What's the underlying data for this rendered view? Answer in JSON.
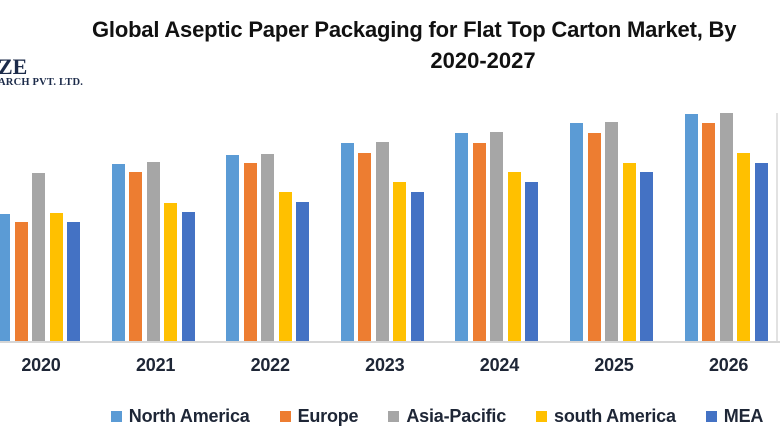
{
  "logo": {
    "line1": "ZE",
    "line2": "ARCH PVT. LTD."
  },
  "title": {
    "line1": "Global Aseptic Paper Packaging for Flat Top Carton Market, By",
    "line2": "2020-2027"
  },
  "chart_data": {
    "type": "bar",
    "title": "Global Aseptic Paper Packaging for Flat Top Carton Market, By 2020-2027",
    "categories": [
      "2020",
      "2021",
      "2022",
      "2023",
      "2024",
      "2025",
      "2026"
    ],
    "series": [
      {
        "name": "North America",
        "color": "#5B9BD5",
        "values": [
          127,
          177,
          186,
          198,
          208,
          218,
          227
        ]
      },
      {
        "name": "Europe",
        "color": "#ED7D31",
        "values": [
          119,
          169,
          178,
          188,
          198,
          208,
          218
        ]
      },
      {
        "name": "Asia-Pacific",
        "color": "#A6A6A6",
        "values": [
          168,
          179,
          187,
          199,
          209,
          219,
          228
        ]
      },
      {
        "name": "south America",
        "color": "#FFC000",
        "values": [
          128,
          138,
          149,
          159,
          169,
          178,
          188
        ]
      },
      {
        "name": "MEA",
        "color": "#4472C4",
        "values": [
          119,
          129,
          139,
          149,
          159,
          169,
          178
        ]
      }
    ],
    "units": "relative height (value axis cropped out of image)",
    "ylim": [
      0,
      241
    ],
    "xlabel": "",
    "ylabel": "",
    "grid": false,
    "value_axis_visible": false,
    "legend_position": "bottom"
  },
  "colors": {
    "background": "#ffffff",
    "title_text": "#111111",
    "label_text": "#1e2636",
    "logo_text": "#1c2b4a",
    "axis_line": "#d6d6d6"
  }
}
